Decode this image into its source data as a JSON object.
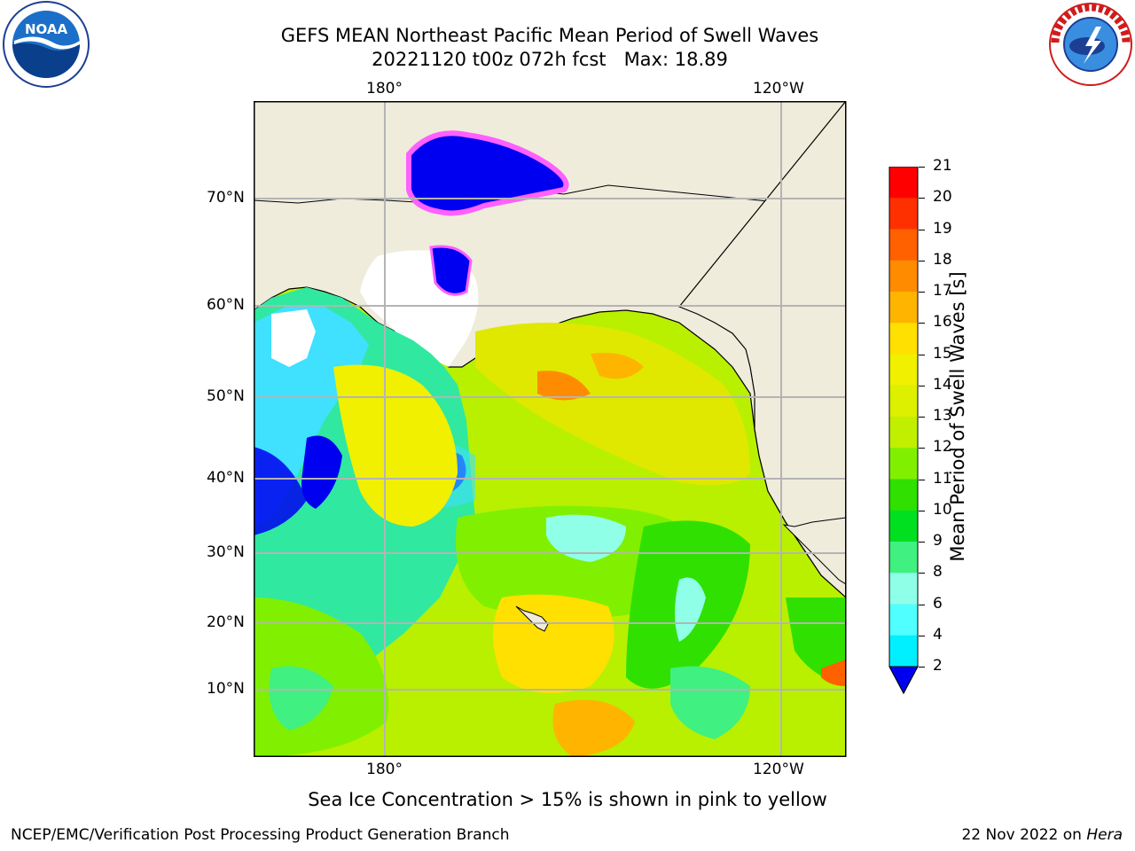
{
  "title": {
    "line1": "GEFS MEAN Northeast Pacific Mean Period of Swell Waves",
    "line2": "20221120 t00z 072h fcst   Max: 18.89"
  },
  "map": {
    "lon_labels": [
      "180°",
      "120°W"
    ],
    "lat_labels": [
      "70°N",
      "60°N",
      "50°N",
      "40°N",
      "30°N",
      "20°N",
      "10°N"
    ],
    "land_color": "#efecdc",
    "grid_color": "#b4b4b4"
  },
  "colorbar": {
    "label": "Mean Period of Swell Waves [s]",
    "ticks": [
      "21",
      "20",
      "19",
      "18",
      "17",
      "16",
      "15",
      "14",
      "13",
      "12",
      "11",
      "10",
      "9",
      "8",
      "6",
      "4",
      "2"
    ],
    "colors": [
      "#ff0000",
      "#ff3000",
      "#ff6000",
      "#ff8c00",
      "#ffb400",
      "#ffe000",
      "#f0f000",
      "#dcf000",
      "#c0f000",
      "#80f000",
      "#30e000",
      "#00e020",
      "#40f080",
      "#90ffe8",
      "#50ffff",
      "#00f0ff",
      "#00c8ff",
      "#0080ff"
    ]
  },
  "annotation": "Sea Ice Concentration > 15% is shown in pink to yellow",
  "footer": {
    "left": "NCEP/EMC/Verification Post Processing Product Generation Branch",
    "right_date": "22 Nov 2022 on ",
    "right_host": "Hera"
  },
  "logos": {
    "noaa_text": "NOAA",
    "nws_text": "NATIONAL WEATHER SERVICE"
  }
}
